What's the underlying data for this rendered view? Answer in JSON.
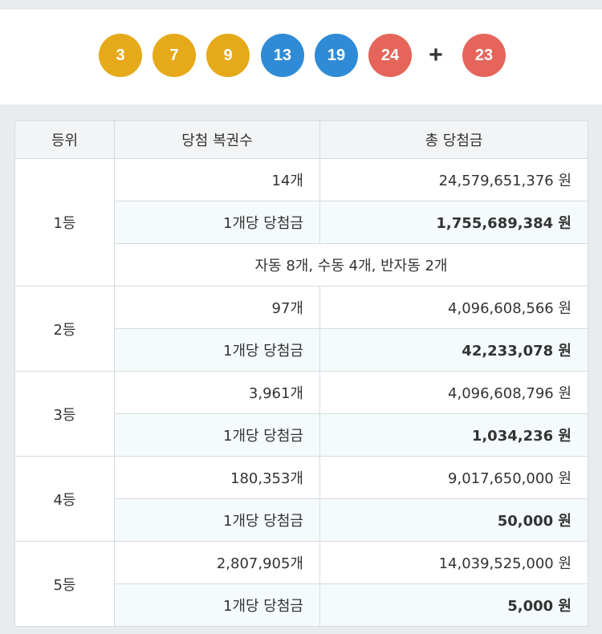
{
  "winning_numbers": {
    "balls": [
      {
        "number": "3",
        "color": "#e5a91a"
      },
      {
        "number": "7",
        "color": "#e5a91a"
      },
      {
        "number": "9",
        "color": "#e5a91a"
      },
      {
        "number": "13",
        "color": "#2f8bd5"
      },
      {
        "number": "19",
        "color": "#2f8bd5"
      },
      {
        "number": "24",
        "color": "#e5655a"
      }
    ],
    "plus": "+",
    "bonus": {
      "number": "23",
      "color": "#e5655a"
    }
  },
  "table": {
    "headers": [
      "등위",
      "당첨 복권수",
      "총 당첨금"
    ],
    "ranks": [
      {
        "rank": "1등",
        "winners": "14개",
        "total": "24,579,651,376 원",
        "per_label": "1개당 당첨금",
        "per_amount": "1,755,689,384 원",
        "note": "자동 8개, 수동 4개, 반자동 2개"
      },
      {
        "rank": "2등",
        "winners": "97개",
        "total": "4,096,608,566 원",
        "per_label": "1개당 당첨금",
        "per_amount": "42,233,078 원"
      },
      {
        "rank": "3등",
        "winners": "3,961개",
        "total": "4,096,608,796 원",
        "per_label": "1개당 당첨금",
        "per_amount": "1,034,236 원"
      },
      {
        "rank": "4등",
        "winners": "180,353개",
        "total": "9,017,650,000 원",
        "per_label": "1개당 당첨금",
        "per_amount": "50,000 원"
      },
      {
        "rank": "5등",
        "winners": "2,807,905개",
        "total": "14,039,525,000 원",
        "per_label": "1개당 당첨금",
        "per_amount": "5,000 원"
      }
    ]
  }
}
